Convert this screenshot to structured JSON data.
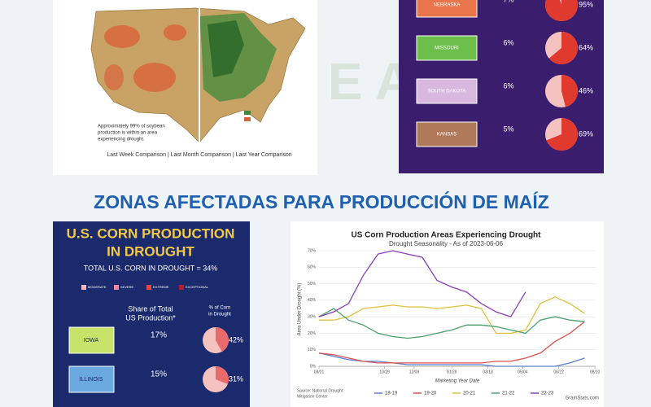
{
  "soybean_map": {
    "note_lines": [
      "Approximately 99% of soybean",
      "production is within an area",
      "experiencing drought."
    ],
    "comparisons": "Last Week Comparison  |  Last Month Comparison  |  Last Year Comparison"
  },
  "soybean_states": [
    {
      "name": "NEBRASKA",
      "share": "7%",
      "drought": 95,
      "drought_label": "95%"
    },
    {
      "name": "MISSOURI",
      "share": "6%",
      "drought": 64,
      "drought_label": "64%"
    },
    {
      "name": "SOUTH DAKOTA",
      "share": "6%",
      "drought": 46,
      "drought_label": "46%"
    },
    {
      "name": "KANSAS",
      "share": "5%",
      "drought": 69,
      "drought_label": "69%"
    }
  ],
  "section_title": "ZONAS AFECTADAS PARA PRODUCCIÓN DE MAÍZ",
  "corn_infographic": {
    "title_lines": [
      "U.S. CORN PRODUCTION",
      "IN DROUGHT"
    ],
    "total": "TOTAL U.S. CORN IN DROUGHT = 34%",
    "legend": [
      "MODERATE",
      "SEVERE",
      "EXTREME",
      "EXCEPTIONAL"
    ],
    "share_header": [
      "Share of Total",
      "US Production*"
    ],
    "drought_header": [
      "% of Corn",
      "in Drought"
    ],
    "states": [
      {
        "name": "IOWA",
        "share": "17%",
        "drought": 42,
        "drought_label": "42%"
      },
      {
        "name": "ILLINOIS",
        "share": "15%",
        "drought": 31,
        "drought_label": "31%"
      }
    ]
  },
  "chart_data": {
    "type": "line",
    "title": "US Corn Production Areas Experiencing Drought",
    "subtitle": "Drought Seasonality - As of 2023-06-06",
    "y_label": "Area Under Drought (%)",
    "x_label": "Marketing Year Date",
    "source": [
      "Source: National Drought",
      "Mitigation Center"
    ],
    "credit": "GrainStats.com",
    "x": [
      0,
      20,
      40,
      60,
      80,
      100,
      120,
      140,
      160,
      180,
      200,
      220,
      240,
      260,
      280,
      300,
      320,
      340,
      360
    ],
    "xlim": [
      0,
      375
    ],
    "xticks": [
      {
        "value": 0,
        "label": "08/01"
      },
      {
        "value": 89,
        "label": "10/29"
      },
      {
        "value": 129,
        "label": "12/08"
      },
      {
        "value": 180,
        "label": "01/28"
      },
      {
        "value": 229,
        "label": "03/18"
      },
      {
        "value": 276,
        "label": "05/04"
      },
      {
        "value": 325,
        "label": "06/22"
      },
      {
        "value": 374,
        "label": "08/10"
      }
    ],
    "ylim": [
      0,
      70
    ],
    "yticks": [
      {
        "value": 0,
        "label": "0%"
      },
      {
        "value": 10,
        "label": "10%"
      },
      {
        "value": 20,
        "label": "20%"
      },
      {
        "value": 30,
        "label": "30%"
      },
      {
        "value": 40,
        "label": "40%"
      },
      {
        "value": 50,
        "label": "50%"
      },
      {
        "value": 60,
        "label": "60%"
      },
      {
        "value": 70,
        "label": "70%"
      }
    ],
    "grid": true,
    "legend": "bottom",
    "series": [
      {
        "name": "18-19",
        "color": "#5b7fd0",
        "values": [
          8,
          6,
          4,
          3,
          3,
          2,
          1,
          1,
          1,
          1,
          1,
          1,
          0,
          0,
          0,
          0,
          0,
          2,
          5
        ]
      },
      {
        "name": "19-20",
        "color": "#d9534f",
        "values": [
          8,
          7,
          5,
          3,
          2,
          2,
          2,
          2,
          2,
          2,
          2,
          2,
          3,
          3,
          5,
          8,
          15,
          20,
          27
        ]
      },
      {
        "name": "20-21",
        "color": "#e0bf3e",
        "values": [
          28,
          28,
          30,
          35,
          36,
          37,
          36,
          36,
          35,
          36,
          37,
          35,
          20,
          20,
          22,
          38,
          42,
          38,
          32
        ]
      },
      {
        "name": "21-22",
        "color": "#4aa06a",
        "values": [
          30,
          35,
          28,
          25,
          20,
          18,
          17,
          18,
          20,
          22,
          25,
          25,
          24,
          22,
          20,
          28,
          30,
          28,
          27
        ]
      },
      {
        "name": "22-23",
        "color": "#8b3fb5",
        "values": [
          30,
          33,
          38,
          55,
          68,
          70,
          68,
          66,
          52,
          48,
          45,
          38,
          33,
          30,
          45,
          null,
          null,
          null,
          null
        ]
      }
    ]
  }
}
